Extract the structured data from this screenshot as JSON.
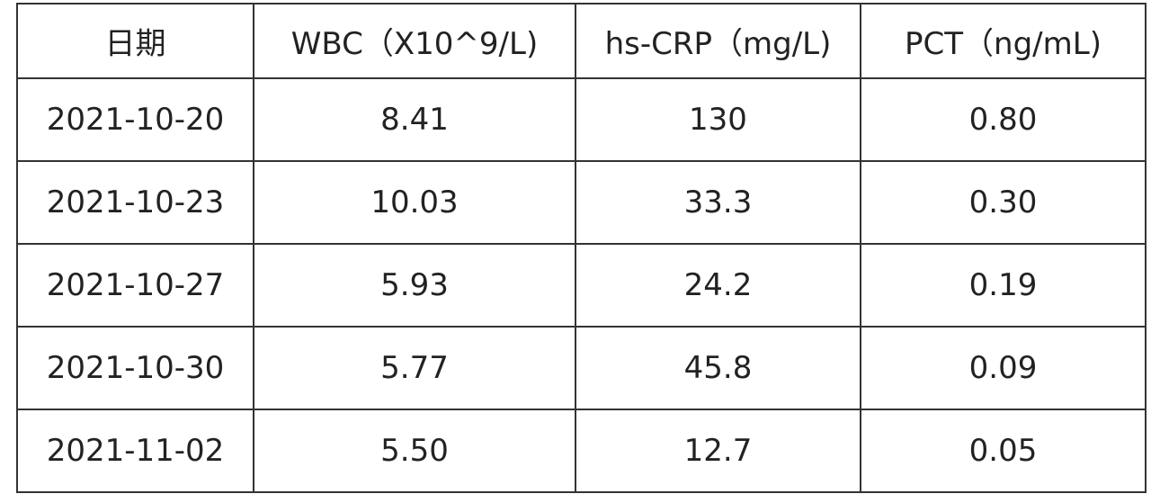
{
  "table": {
    "header": [
      "日期",
      "WBC（X10^9/L)",
      "hs-CRP（mg/L)",
      "PCT（ng/mL)"
    ],
    "rows": [
      [
        "2021-10-20",
        "8.41",
        "130",
        "0.80"
      ],
      [
        "2021-10-23",
        "10.03",
        "33.3",
        "0.30"
      ],
      [
        "2021-10-27",
        "5.93",
        "24.2",
        "0.19"
      ],
      [
        "2021-10-30",
        "5.77",
        "45.8",
        "0.09"
      ],
      [
        "2021-11-02",
        "5.50",
        "12.7",
        "0.05"
      ]
    ]
  }
}
